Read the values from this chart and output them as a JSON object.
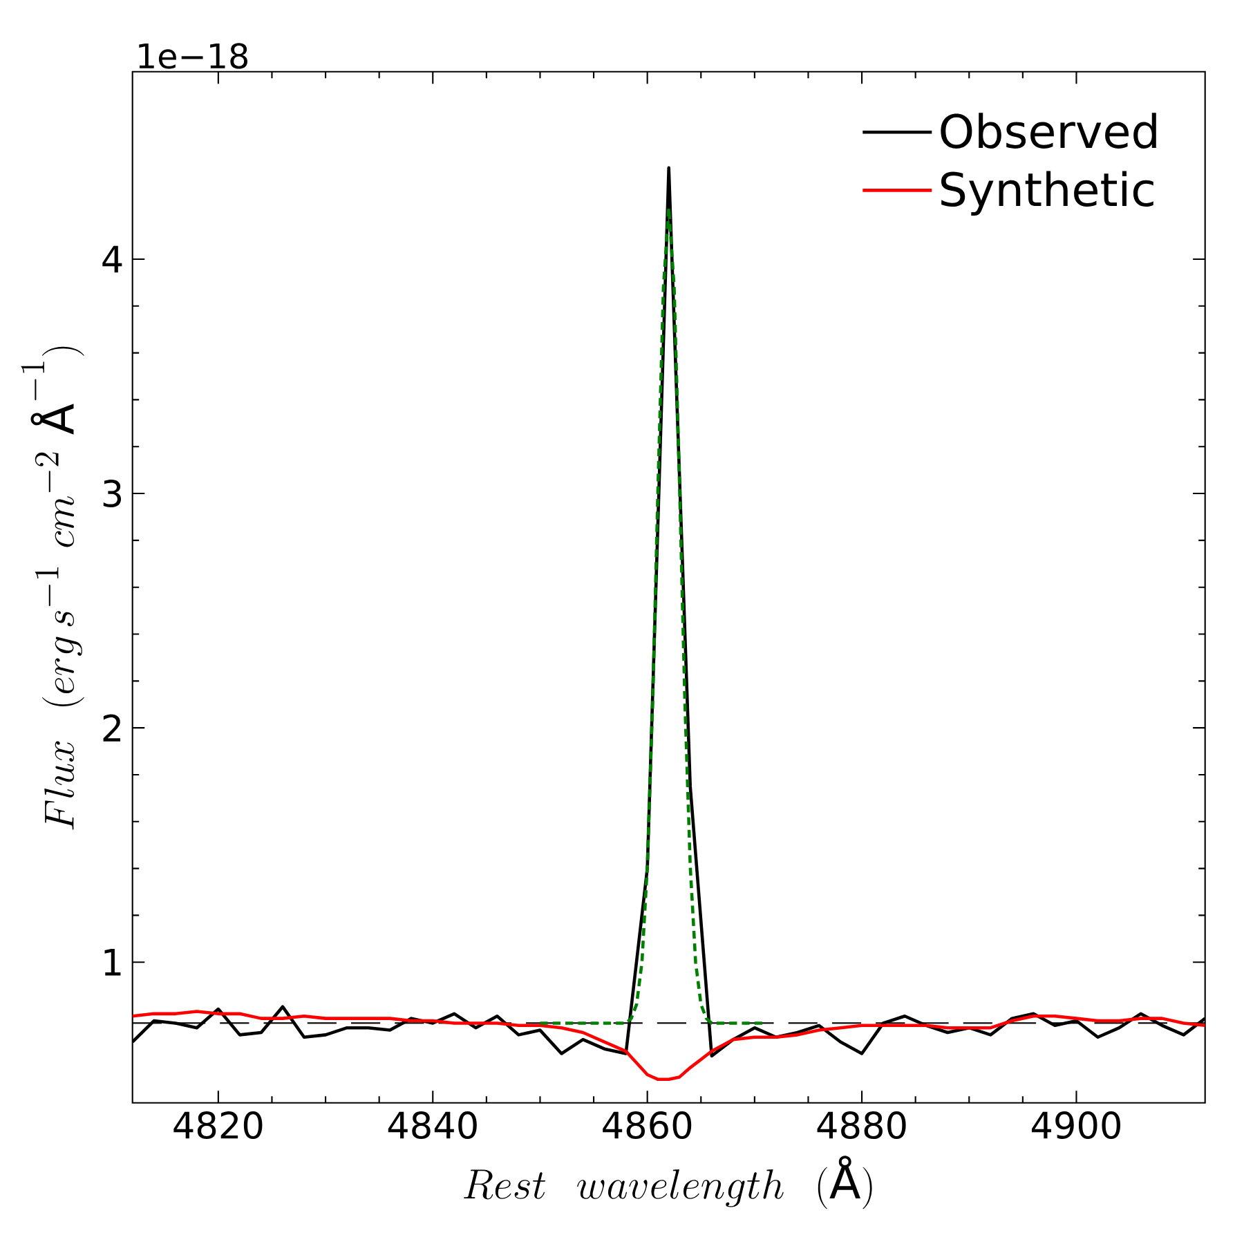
{
  "chart_data": {
    "type": "line",
    "xlabel": "Rest\\ \\ wavelength\\ \\ (\\mbox{\\AA})",
    "ylabel": "Flux\\ \\ (erg\\,s^{-1}\\ cm^{-2}\\ \\mbox{\\AA}^{-1})",
    "annotations": [
      "1e−18"
    ],
    "xlim": [
      4812,
      4912
    ],
    "xticks": [
      4820,
      4840,
      4860,
      4880,
      4900
    ],
    "ylim": [
      0.4,
      4.8
    ],
    "yticks": [
      1,
      2,
      3,
      4
    ],
    "legend": "top right",
    "series": [
      {
        "name": "Observed",
        "color": "#000000",
        "x": [
          4812,
          4814,
          4816,
          4818,
          4820,
          4822,
          4824,
          4826,
          4828,
          4830,
          4832,
          4834,
          4836,
          4838,
          4840,
          4842,
          4844,
          4846,
          4848,
          4850,
          4852,
          4854,
          4856,
          4858,
          4860,
          4862,
          4864,
          4866,
          4868,
          4870,
          4872,
          4874,
          4876,
          4878,
          4880,
          4882,
          4884,
          4886,
          4888,
          4890,
          4892,
          4894,
          4896,
          4898,
          4900,
          4902,
          4904,
          4906,
          4908,
          4910,
          4912
        ],
        "values": [
          0.66,
          0.75,
          0.74,
          0.72,
          0.8,
          0.69,
          0.7,
          0.81,
          0.68,
          0.69,
          0.72,
          0.72,
          0.71,
          0.76,
          0.74,
          0.78,
          0.72,
          0.77,
          0.69,
          0.71,
          0.61,
          0.67,
          0.63,
          0.61,
          1.4,
          4.39,
          1.75,
          0.6,
          0.67,
          0.72,
          0.68,
          0.7,
          0.73,
          0.66,
          0.61,
          0.74,
          0.77,
          0.73,
          0.7,
          0.72,
          0.69,
          0.76,
          0.78,
          0.73,
          0.75,
          0.68,
          0.72,
          0.78,
          0.73,
          0.69,
          0.76
        ]
      },
      {
        "name": "Synthetic",
        "color": "#ff0000",
        "x": [
          4812,
          4814,
          4816,
          4818,
          4820,
          4822,
          4824,
          4826,
          4828,
          4830,
          4832,
          4834,
          4836,
          4838,
          4840,
          4842,
          4844,
          4846,
          4848,
          4850,
          4852,
          4854,
          4856,
          4858,
          4859,
          4860,
          4861,
          4862,
          4863,
          4864,
          4866,
          4868,
          4870,
          4872,
          4874,
          4876,
          4878,
          4880,
          4882,
          4884,
          4886,
          4888,
          4890,
          4892,
          4894,
          4896,
          4898,
          4900,
          4902,
          4904,
          4906,
          4908,
          4910,
          4912
        ],
        "values": [
          0.77,
          0.78,
          0.78,
          0.79,
          0.78,
          0.78,
          0.76,
          0.76,
          0.77,
          0.76,
          0.76,
          0.76,
          0.76,
          0.75,
          0.75,
          0.74,
          0.74,
          0.74,
          0.73,
          0.73,
          0.72,
          0.7,
          0.66,
          0.62,
          0.57,
          0.52,
          0.5,
          0.5,
          0.51,
          0.55,
          0.62,
          0.67,
          0.68,
          0.68,
          0.69,
          0.71,
          0.72,
          0.73,
          0.73,
          0.73,
          0.73,
          0.72,
          0.72,
          0.72,
          0.75,
          0.77,
          0.77,
          0.76,
          0.75,
          0.75,
          0.76,
          0.76,
          0.74,
          0.73
        ]
      },
      {
        "color": "#008000",
        "line_style": "dashed",
        "x": [
          4850,
          4852,
          4854,
          4856,
          4858,
          4858.5,
          4859,
          4859.5,
          4860,
          4860.5,
          4861,
          4861.5,
          4862,
          4862.5,
          4863,
          4863.5,
          4864,
          4864.5,
          4865,
          4865.5,
          4866,
          4868,
          4871
        ],
        "values": [
          0.74,
          0.74,
          0.74,
          0.74,
          0.74,
          0.76,
          0.82,
          1.0,
          1.41,
          2.11,
          3.04,
          3.88,
          4.22,
          3.88,
          3.04,
          2.11,
          1.41,
          1.0,
          0.82,
          0.76,
          0.74,
          0.74,
          0.74
        ]
      }
    ],
    "ref_lines": [
      {
        "axis": "y",
        "value": 0.74,
        "color": "#000000",
        "line_style": "dashed"
      }
    ]
  }
}
